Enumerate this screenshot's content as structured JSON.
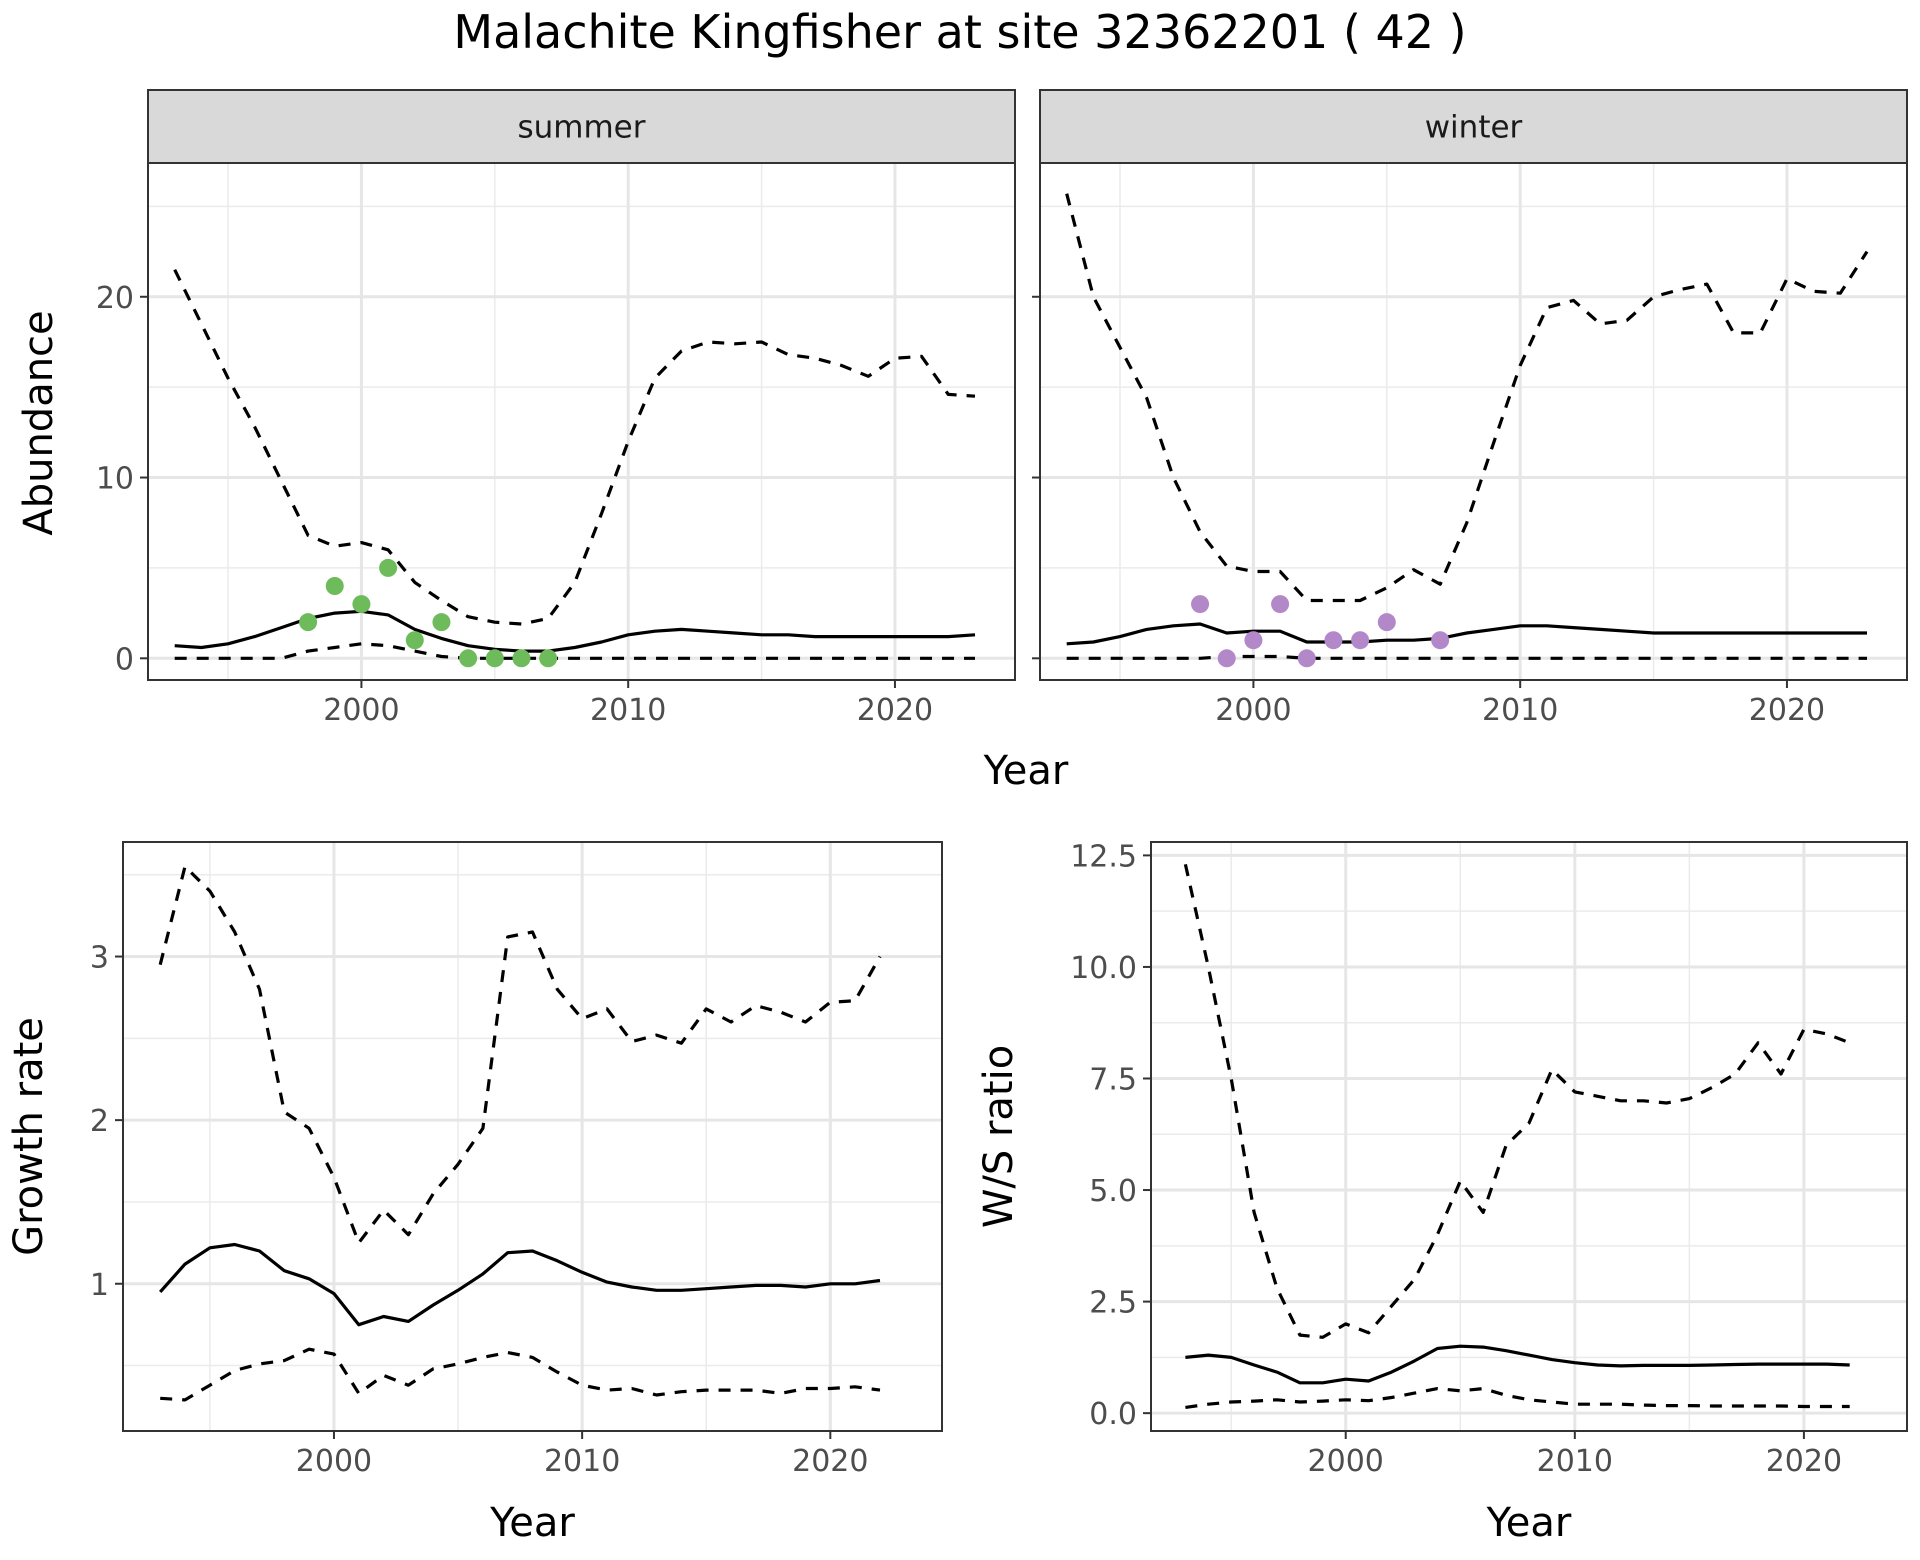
{
  "page_title": "Malachite Kingfisher at site 32362201 ( 42 )",
  "chart_data": [
    {
      "type": "line",
      "panel": "abundance-summer",
      "strip": "summer",
      "xlabel": "Year",
      "ylabel": "Abundance",
      "xlim": [
        1992,
        2024.5
      ],
      "ylim": [
        -1.2,
        27.4
      ],
      "xticks": [
        2000,
        2010,
        2020
      ],
      "yticks": [
        0,
        10,
        20
      ],
      "grid": true,
      "point_color": "#6dbb5b",
      "series": [
        {
          "style": "solid",
          "x": [
            1993,
            1994,
            1995,
            1996,
            1997,
            1998,
            1999,
            2000,
            2001,
            2002,
            2003,
            2004,
            2005,
            2006,
            2007,
            2008,
            2009,
            2010,
            2011,
            2012,
            2013,
            2014,
            2015,
            2016,
            2017,
            2018,
            2019,
            2020,
            2021,
            2022,
            2023
          ],
          "values": [
            0.7,
            0.6,
            0.8,
            1.2,
            1.7,
            2.2,
            2.5,
            2.6,
            2.4,
            1.6,
            1.1,
            0.7,
            0.5,
            0.4,
            0.4,
            0.6,
            0.9,
            1.3,
            1.5,
            1.6,
            1.5,
            1.4,
            1.3,
            1.3,
            1.2,
            1.2,
            1.2,
            1.2,
            1.2,
            1.2,
            1.3
          ]
        },
        {
          "style": "dashed",
          "x": [
            1993,
            1994,
            1995,
            1996,
            1997,
            1998,
            1999,
            2000,
            2001,
            2002,
            2003,
            2004,
            2005,
            2006,
            2007,
            2008,
            2009,
            2010,
            2011,
            2012,
            2013,
            2014,
            2015,
            2016,
            2017,
            2018,
            2019,
            2020,
            2021,
            2022,
            2023
          ],
          "values": [
            21.5,
            18.5,
            15.5,
            12.8,
            9.8,
            6.8,
            6.2,
            6.4,
            6.0,
            4.2,
            3.2,
            2.3,
            2.0,
            1.9,
            2.2,
            4.2,
            8.0,
            12.0,
            15.5,
            17.0,
            17.5,
            17.4,
            17.5,
            16.8,
            16.6,
            16.2,
            15.6,
            16.6,
            16.7,
            14.6,
            14.5
          ]
        },
        {
          "style": "dashed",
          "x": [
            1993,
            1994,
            1995,
            1996,
            1997,
            1998,
            1999,
            2000,
            2001,
            2002,
            2003,
            2004,
            2005,
            2006,
            2007,
            2008,
            2009,
            2010,
            2011,
            2012,
            2013,
            2014,
            2015,
            2016,
            2017,
            2018,
            2019,
            2020,
            2021,
            2022,
            2023
          ],
          "values": [
            0,
            0,
            0,
            0,
            0,
            0.4,
            0.6,
            0.8,
            0.7,
            0.4,
            0.1,
            0,
            0,
            0,
            0,
            0,
            0,
            0,
            0,
            0,
            0,
            0,
            0,
            0,
            0,
            0,
            0,
            0,
            0,
            0,
            0
          ]
        }
      ],
      "points": {
        "x": [
          1998,
          1999,
          2000,
          2001,
          2002,
          2003,
          2004,
          2005,
          2006,
          2007
        ],
        "values": [
          2,
          4,
          3,
          5,
          1,
          2,
          0,
          0,
          0,
          0
        ]
      }
    },
    {
      "type": "line",
      "panel": "abundance-winter",
      "strip": "winter",
      "xlabel": "Year",
      "ylabel": "Abundance",
      "xlim": [
        1992,
        2024.5
      ],
      "ylim": [
        -1.2,
        27.4
      ],
      "xticks": [
        2000,
        2010,
        2020
      ],
      "yticks": [
        0,
        10,
        20
      ],
      "grid": true,
      "point_color": "#b388c8",
      "series": [
        {
          "style": "solid",
          "x": [
            1993,
            1994,
            1995,
            1996,
            1997,
            1998,
            1999,
            2000,
            2001,
            2002,
            2003,
            2004,
            2005,
            2006,
            2007,
            2008,
            2009,
            2010,
            2011,
            2012,
            2013,
            2014,
            2015,
            2016,
            2017,
            2018,
            2019,
            2020,
            2021,
            2022,
            2023
          ],
          "values": [
            0.8,
            0.9,
            1.2,
            1.6,
            1.8,
            1.9,
            1.4,
            1.5,
            1.5,
            0.9,
            0.9,
            0.9,
            1.0,
            1.0,
            1.1,
            1.4,
            1.6,
            1.8,
            1.8,
            1.7,
            1.6,
            1.5,
            1.4,
            1.4,
            1.4,
            1.4,
            1.4,
            1.4,
            1.4,
            1.4,
            1.4
          ]
        },
        {
          "style": "dashed",
          "x": [
            1993,
            1994,
            1995,
            1996,
            1997,
            1998,
            1999,
            2000,
            2001,
            2002,
            2003,
            2004,
            2005,
            2006,
            2007,
            2008,
            2009,
            2010,
            2011,
            2012,
            2013,
            2014,
            2015,
            2016,
            2017,
            2018,
            2019,
            2020,
            2021,
            2022,
            2023
          ],
          "values": [
            25.7,
            20.0,
            17.2,
            14.4,
            10.0,
            7.0,
            5.1,
            4.8,
            4.8,
            3.2,
            3.2,
            3.2,
            3.9,
            4.9,
            4.1,
            7.5,
            11.9,
            16.2,
            19.4,
            19.8,
            18.5,
            18.7,
            20.0,
            20.4,
            20.7,
            18.0,
            18.0,
            21.0,
            20.3,
            20.2,
            22.5
          ]
        },
        {
          "style": "dashed",
          "x": [
            1993,
            1994,
            1995,
            1996,
            1997,
            1998,
            1999,
            2000,
            2001,
            2002,
            2003,
            2004,
            2005,
            2006,
            2007,
            2008,
            2009,
            2010,
            2011,
            2012,
            2013,
            2014,
            2015,
            2016,
            2017,
            2018,
            2019,
            2020,
            2021,
            2022,
            2023
          ],
          "values": [
            0,
            0,
            0,
            0,
            0,
            0,
            0.1,
            0.1,
            0.1,
            0,
            0,
            0,
            0,
            0,
            0,
            0,
            0,
            0,
            0,
            0,
            0,
            0,
            0,
            0,
            0,
            0,
            0,
            0,
            0,
            0,
            0
          ]
        }
      ],
      "points": {
        "x": [
          1998,
          1999,
          2000,
          2001,
          2002,
          2003,
          2004,
          2005,
          2007
        ],
        "values": [
          3,
          0,
          1,
          3,
          0,
          1,
          1,
          2,
          1
        ]
      }
    },
    {
      "type": "line",
      "panel": "growth-rate",
      "xlabel": "Year",
      "ylabel": "Growth rate",
      "xlim": [
        1991.5,
        2024.5
      ],
      "ylim": [
        0.1,
        3.7
      ],
      "xticks": [
        2000,
        2010,
        2020
      ],
      "yticks": [
        1,
        2,
        3
      ],
      "grid": true,
      "series": [
        {
          "style": "solid",
          "x": [
            1993,
            1994,
            1995,
            1996,
            1997,
            1998,
            1999,
            2000,
            2001,
            2002,
            2003,
            2004,
            2005,
            2006,
            2007,
            2008,
            2009,
            2010,
            2011,
            2012,
            2013,
            2014,
            2015,
            2016,
            2017,
            2018,
            2019,
            2020,
            2021,
            2022
          ],
          "values": [
            0.95,
            1.12,
            1.22,
            1.24,
            1.2,
            1.08,
            1.03,
            0.94,
            0.75,
            0.8,
            0.77,
            0.87,
            0.96,
            1.06,
            1.19,
            1.2,
            1.14,
            1.07,
            1.01,
            0.98,
            0.96,
            0.96,
            0.97,
            0.98,
            0.99,
            0.99,
            0.98,
            1.0,
            1.0,
            1.02
          ]
        },
        {
          "style": "dashed",
          "x": [
            1993,
            1994,
            1995,
            1996,
            1997,
            1998,
            1999,
            2000,
            2001,
            2002,
            2003,
            2004,
            2005,
            2006,
            2007,
            2008,
            2009,
            2010,
            2011,
            2012,
            2013,
            2014,
            2015,
            2016,
            2017,
            2018,
            2019,
            2020,
            2021,
            2022
          ],
          "values": [
            2.95,
            3.55,
            3.4,
            3.15,
            2.8,
            2.05,
            1.95,
            1.65,
            1.25,
            1.45,
            1.3,
            1.55,
            1.73,
            1.95,
            3.12,
            3.15,
            2.8,
            2.62,
            2.68,
            2.48,
            2.52,
            2.47,
            2.68,
            2.6,
            2.7,
            2.66,
            2.6,
            2.72,
            2.73,
            3.0
          ]
        },
        {
          "style": "dashed",
          "x": [
            1993,
            1994,
            1995,
            1996,
            1997,
            1998,
            1999,
            2000,
            2001,
            2002,
            2003,
            2004,
            2005,
            2006,
            2007,
            2008,
            2009,
            2010,
            2011,
            2012,
            2013,
            2014,
            2015,
            2016,
            2017,
            2018,
            2019,
            2020,
            2021,
            2022
          ],
          "values": [
            0.3,
            0.29,
            0.38,
            0.47,
            0.51,
            0.53,
            0.6,
            0.57,
            0.33,
            0.44,
            0.38,
            0.48,
            0.51,
            0.55,
            0.58,
            0.55,
            0.46,
            0.38,
            0.35,
            0.36,
            0.32,
            0.34,
            0.35,
            0.35,
            0.35,
            0.33,
            0.36,
            0.36,
            0.37,
            0.35
          ]
        }
      ]
    },
    {
      "type": "line",
      "panel": "ws-ratio",
      "xlabel": "Year",
      "ylabel": "W/S ratio",
      "xlim": [
        1991.5,
        2024.5
      ],
      "ylim": [
        -0.4,
        12.8
      ],
      "xticks": [
        2000,
        2010,
        2020
      ],
      "yticks": [
        0.0,
        2.5,
        5.0,
        7.5,
        10.0,
        12.5
      ],
      "ytick_labels": [
        "0.0",
        "2.5",
        "5.0",
        "7.5",
        "10.0",
        "12.5"
      ],
      "grid": true,
      "series": [
        {
          "style": "solid",
          "x": [
            1993,
            1994,
            1995,
            1996,
            1997,
            1998,
            1999,
            2000,
            2001,
            2002,
            2003,
            2004,
            2005,
            2006,
            2007,
            2008,
            2009,
            2010,
            2011,
            2012,
            2013,
            2014,
            2015,
            2016,
            2017,
            2018,
            2019,
            2020,
            2021,
            2022
          ],
          "values": [
            1.25,
            1.3,
            1.25,
            1.08,
            0.92,
            0.68,
            0.68,
            0.76,
            0.72,
            0.92,
            1.17,
            1.45,
            1.5,
            1.48,
            1.4,
            1.3,
            1.2,
            1.13,
            1.08,
            1.06,
            1.07,
            1.07,
            1.07,
            1.08,
            1.09,
            1.1,
            1.1,
            1.1,
            1.1,
            1.08
          ]
        },
        {
          "style": "dashed",
          "x": [
            1993,
            1994,
            1995,
            1996,
            1997,
            1998,
            1999,
            2000,
            2001,
            2002,
            2003,
            2004,
            2005,
            2006,
            2007,
            2008,
            2009,
            2010,
            2011,
            2012,
            2013,
            2014,
            2015,
            2016,
            2017,
            2018,
            2019,
            2020,
            2021,
            2022
          ],
          "values": [
            12.3,
            10.0,
            7.5,
            4.5,
            2.8,
            1.75,
            1.7,
            2.0,
            1.8,
            2.4,
            3.0,
            4.0,
            5.2,
            4.5,
            6.0,
            6.5,
            7.7,
            7.2,
            7.1,
            7.0,
            7.0,
            6.95,
            7.05,
            7.3,
            7.6,
            8.3,
            7.6,
            8.6,
            8.5,
            8.3
          ]
        },
        {
          "style": "dashed",
          "x": [
            1993,
            1994,
            1995,
            1996,
            1997,
            1998,
            1999,
            2000,
            2001,
            2002,
            2003,
            2004,
            2005,
            2006,
            2007,
            2008,
            2009,
            2010,
            2011,
            2012,
            2013,
            2014,
            2015,
            2016,
            2017,
            2018,
            2019,
            2020,
            2021,
            2022
          ],
          "values": [
            0.13,
            0.2,
            0.25,
            0.27,
            0.3,
            0.25,
            0.27,
            0.3,
            0.28,
            0.35,
            0.45,
            0.55,
            0.5,
            0.55,
            0.4,
            0.3,
            0.25,
            0.2,
            0.2,
            0.2,
            0.18,
            0.17,
            0.17,
            0.16,
            0.16,
            0.16,
            0.16,
            0.15,
            0.15,
            0.15
          ]
        }
      ]
    }
  ]
}
